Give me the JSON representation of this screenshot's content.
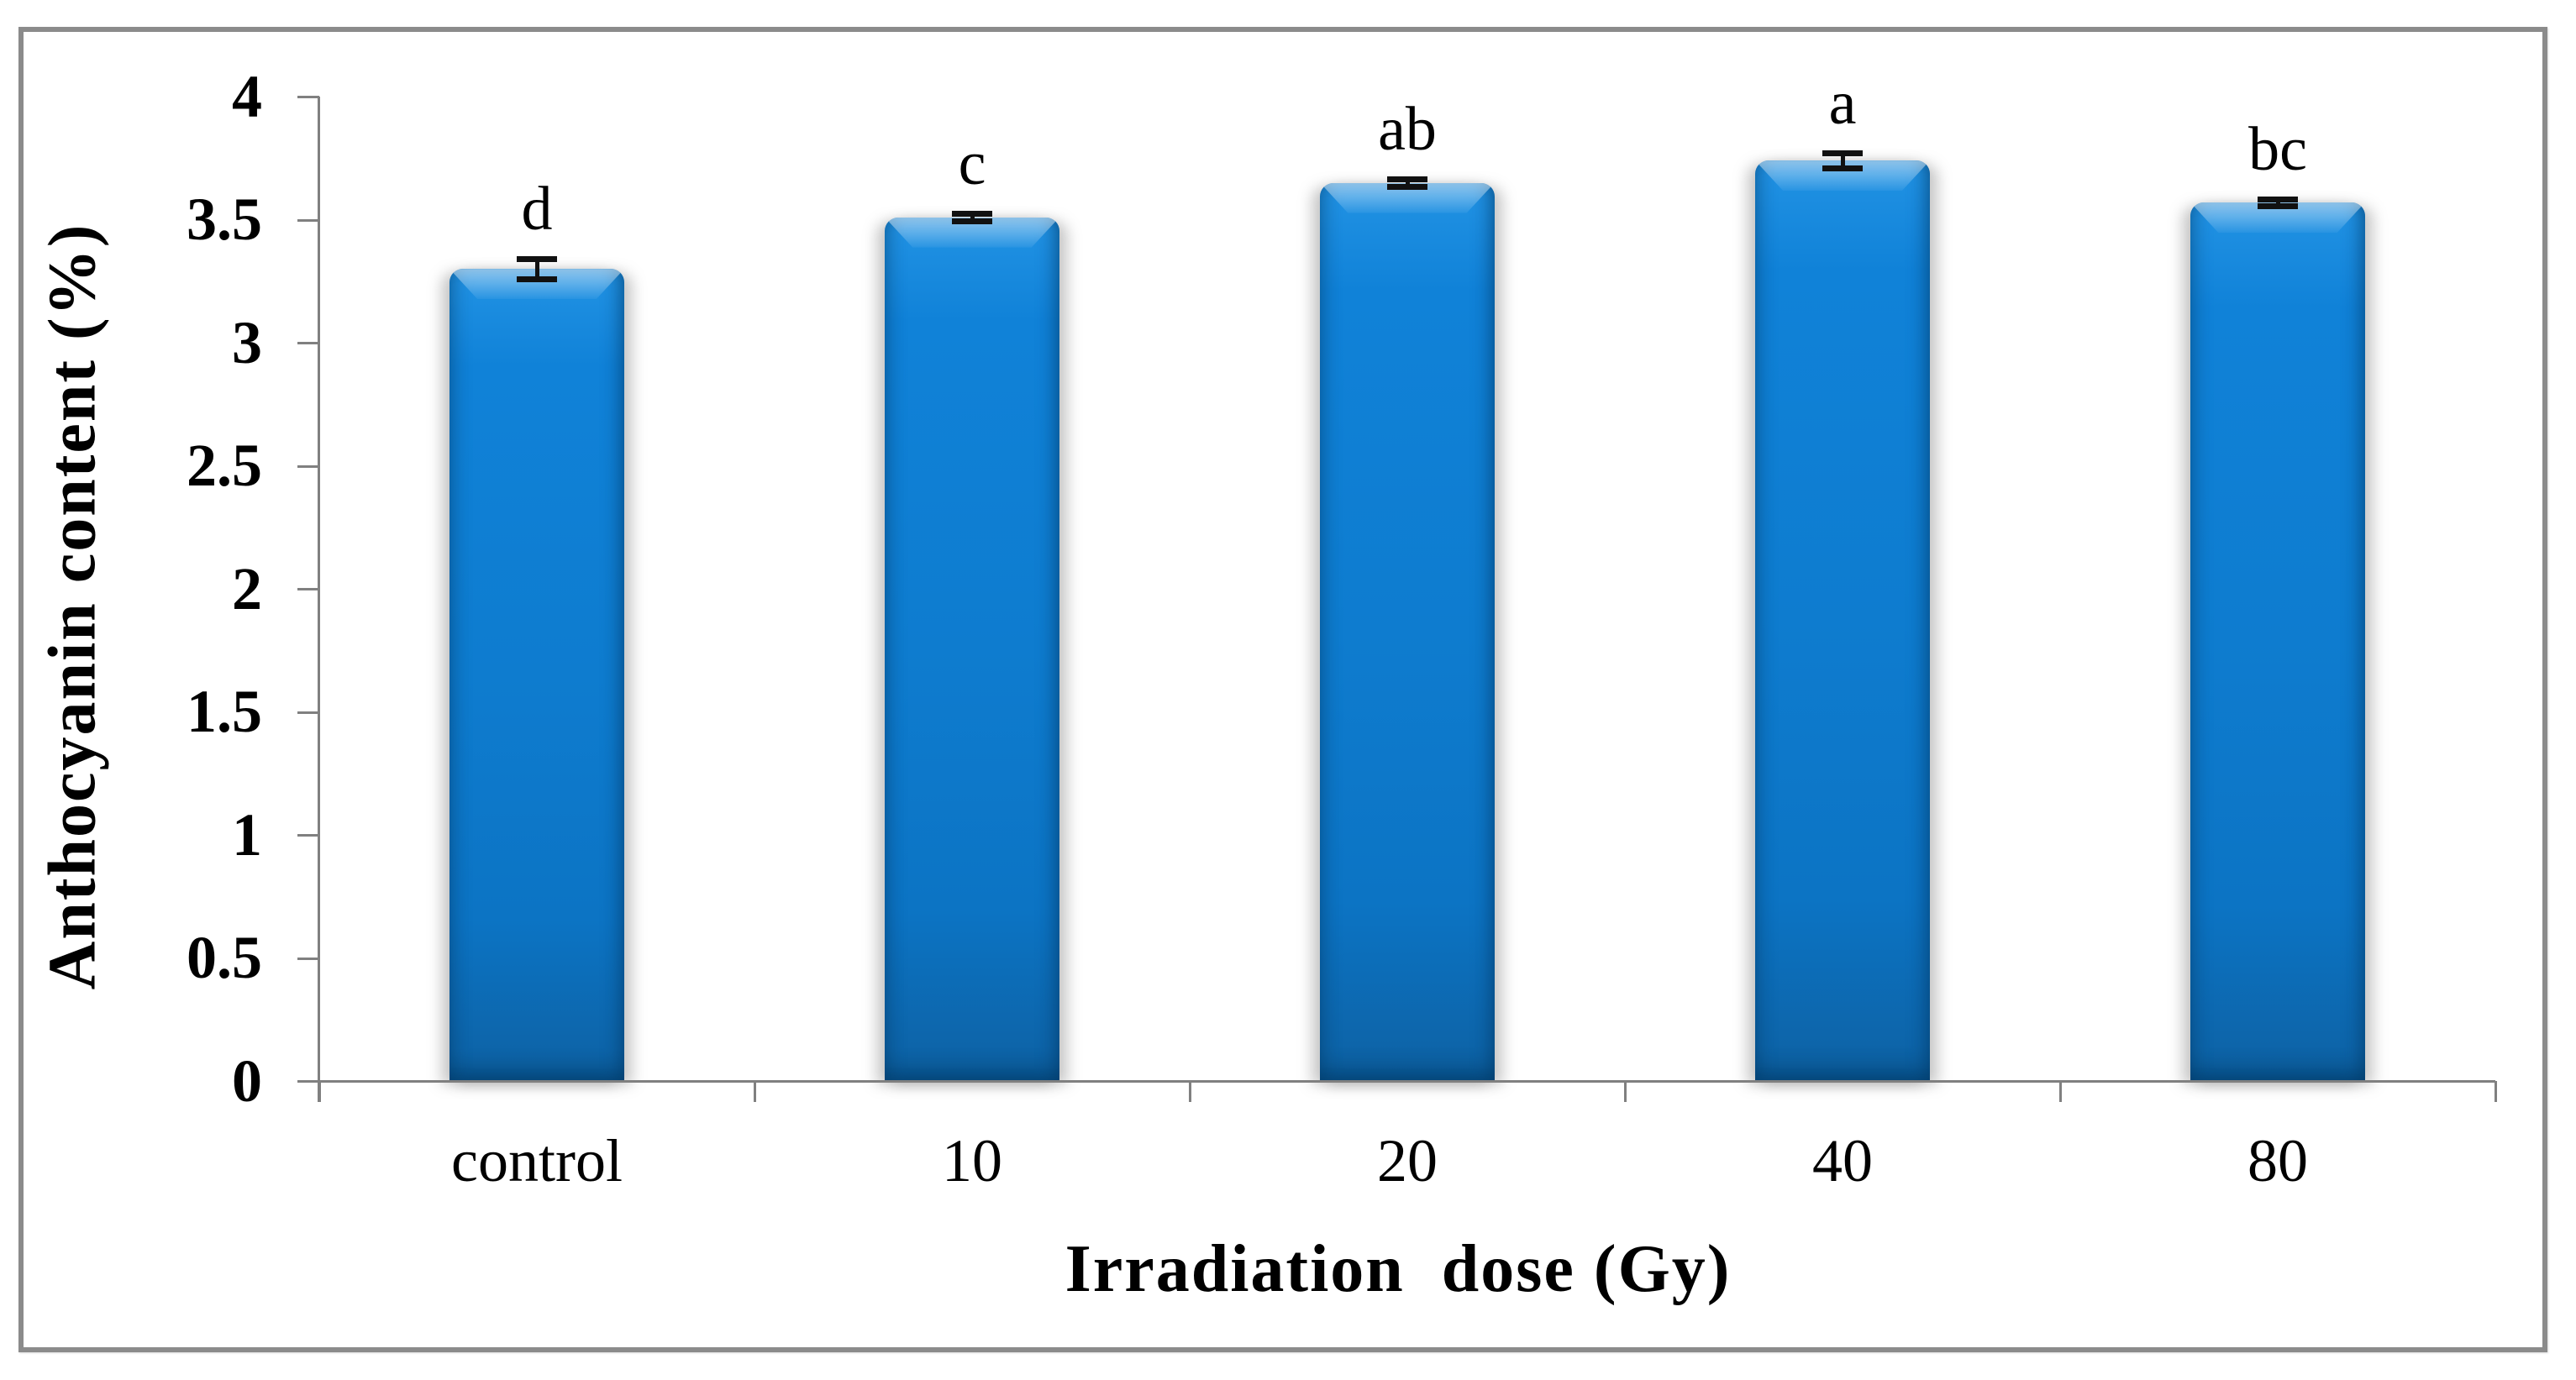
{
  "figure": {
    "background": "#ffffff",
    "border_color": "#8b8b8b",
    "axis_color": "#808080",
    "error_bar_color": "#111111"
  },
  "chart_data": {
    "type": "bar",
    "title": "",
    "xlabel": "Irradiation  dose (Gy)",
    "ylabel": "Anthocyanin content (%)",
    "categories": [
      "control",
      "10",
      "20",
      "40",
      "80"
    ],
    "values": [
      3.3,
      3.51,
      3.65,
      3.74,
      3.57
    ],
    "errors": [
      0.04,
      0.015,
      0.015,
      0.03,
      0.015
    ],
    "sig_letters": [
      "d",
      "c",
      "ab",
      "a",
      "bc"
    ],
    "yticks": [
      0,
      0.5,
      1,
      1.5,
      2,
      2.5,
      3,
      3.5,
      4
    ],
    "ylim": [
      0,
      4
    ],
    "bar_color": "#0e7ccf",
    "grid": false,
    "legend": null
  }
}
